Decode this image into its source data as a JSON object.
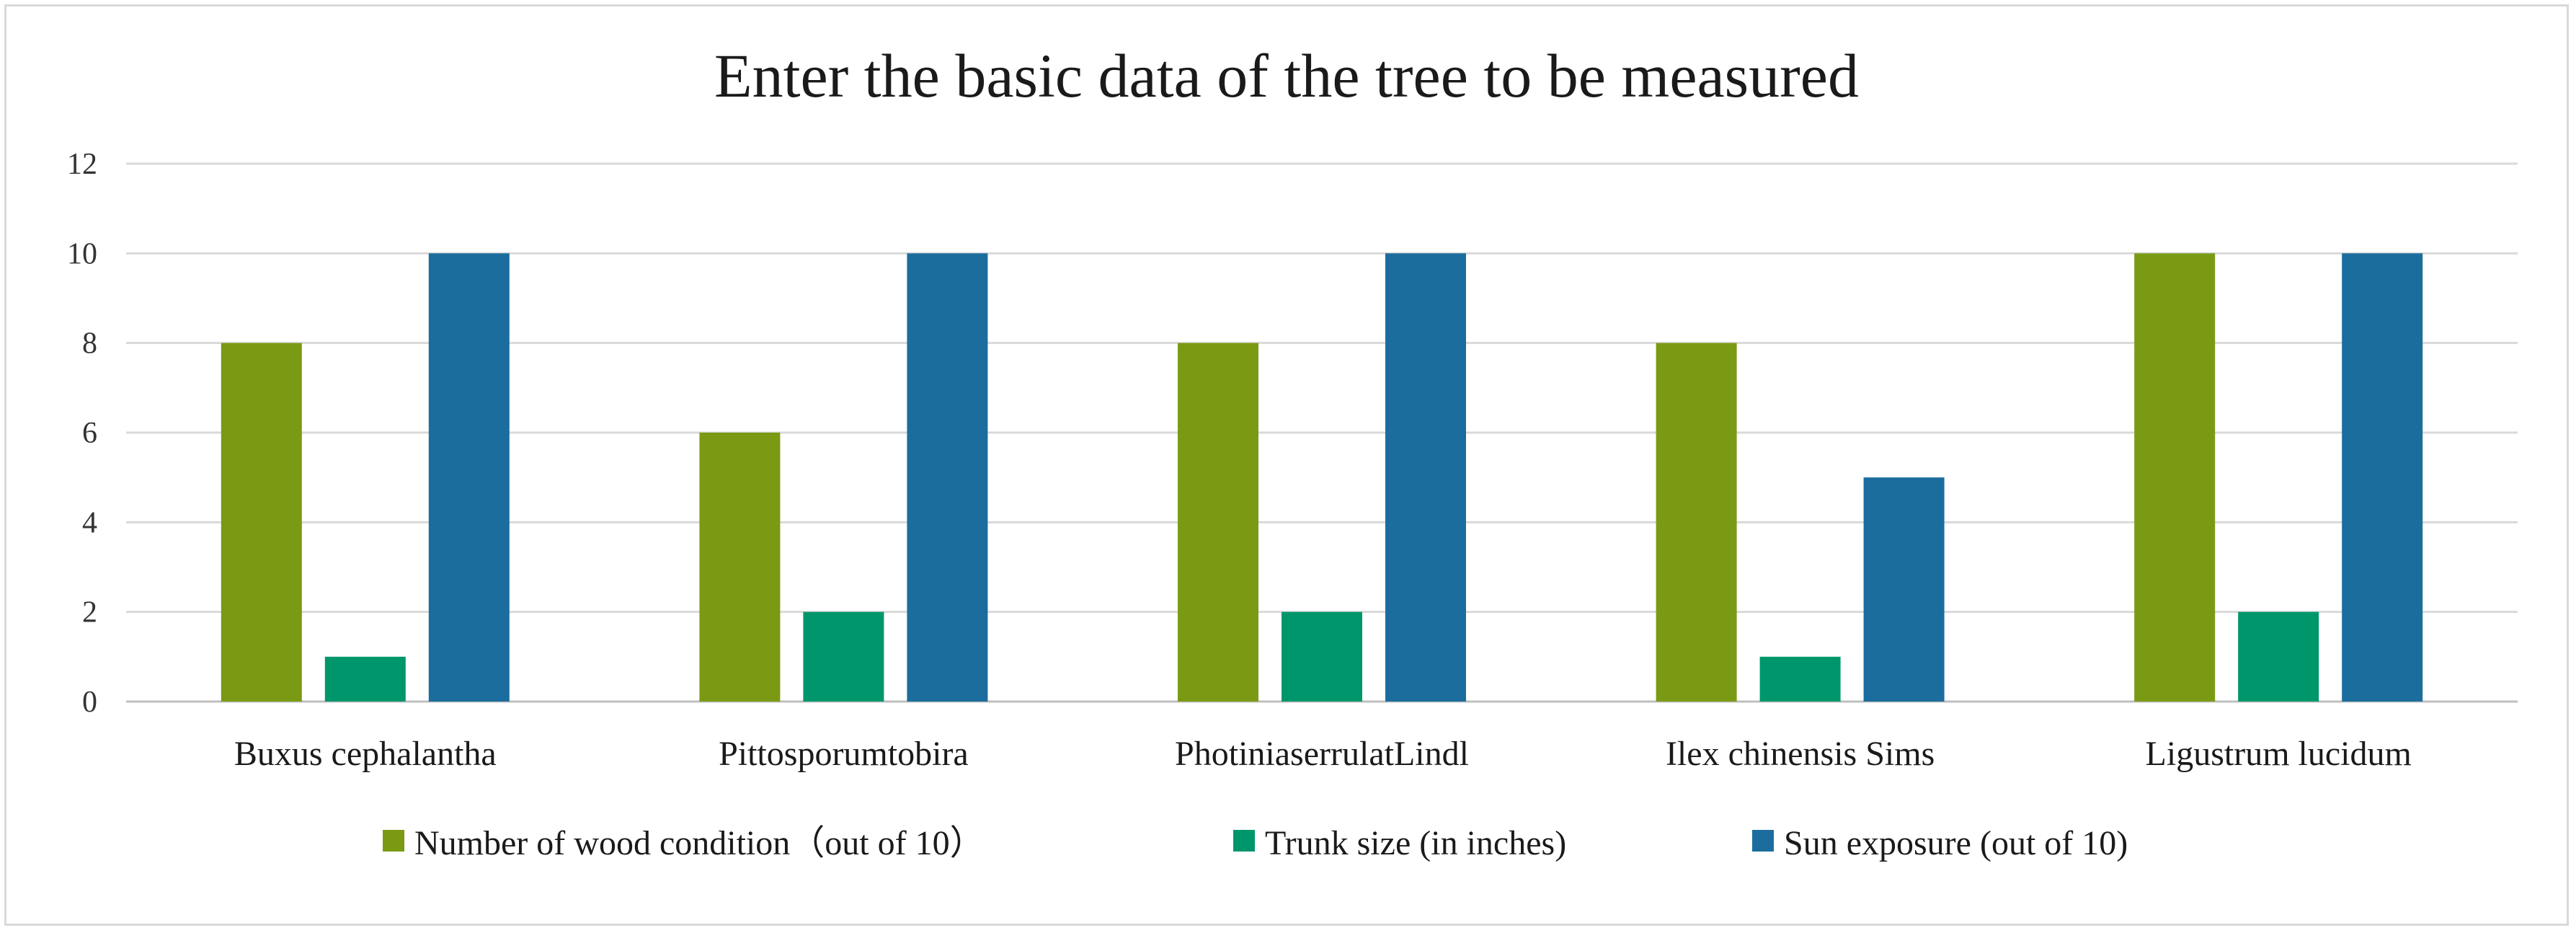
{
  "chart_data": {
    "type": "bar",
    "title": "Enter the basic data of the tree to be measured",
    "categories": [
      "Buxus cephalantha",
      "Pittosporumtobira",
      "PhotiniaserrulatLindl",
      "Ilex chinensis Sims",
      "Ligustrum lucidum"
    ],
    "series": [
      {
        "name": "Number of wood condition（out of 10）",
        "color": "#7a9a14",
        "values": [
          8,
          6,
          8,
          8,
          10
        ]
      },
      {
        "name": "Trunk size (in inches)",
        "color": "#00966c",
        "values": [
          1,
          2,
          2,
          1,
          2
        ]
      },
      {
        "name": "Sun exposure (out of 10)",
        "color": "#1b6d9e",
        "values": [
          10,
          10,
          10,
          5,
          10
        ]
      }
    ],
    "ylim": [
      0,
      12
    ],
    "yticks": [
      0,
      2,
      4,
      6,
      8,
      10,
      12
    ],
    "grid": true,
    "legend_position": "bottom"
  }
}
